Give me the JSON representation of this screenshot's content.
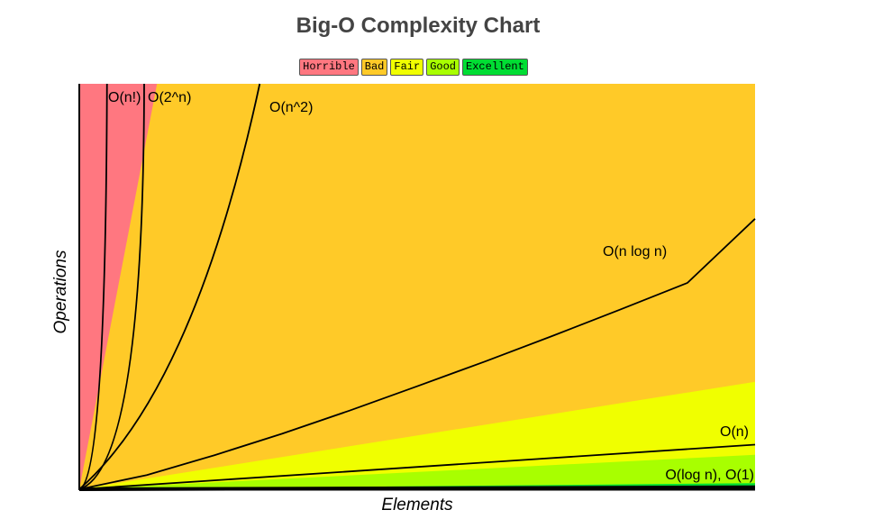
{
  "chart_data": {
    "type": "area",
    "title": "Big-O Complexity Chart",
    "xlabel": "Elements",
    "ylabel": "Operations",
    "xlim": [
      0,
      100
    ],
    "ylim": [
      0,
      100
    ],
    "grid": false,
    "legend": {
      "placement": "top-center",
      "entries": [
        {
          "name": "Horrible",
          "color": "#ff7780"
        },
        {
          "name": "Bad",
          "color": "#ffca28"
        },
        {
          "name": "Fair",
          "color": "#f0ff00"
        },
        {
          "name": "Good",
          "color": "#a8ff00"
        },
        {
          "name": "Excellent",
          "color": "#00dd33"
        }
      ]
    },
    "regions": [
      {
        "name": "Horrible",
        "color": "#ff7780",
        "top_at_x100": 100
      },
      {
        "name": "Bad",
        "color": "#ffca28",
        "top_at_x100": 100
      },
      {
        "name": "Fair",
        "color": "#f0ff00",
        "top_at_x100": 26.5
      },
      {
        "name": "Good",
        "color": "#a8ff00",
        "top_at_x100": 8.5
      },
      {
        "name": "Excellent",
        "color": "#00dd33",
        "top_at_x100": 1.5
      }
    ],
    "series": [
      {
        "name": "O(n!)",
        "x": [
          0,
          0.8,
          1.6,
          2.4,
          3.0,
          3.8
        ],
        "y": [
          0,
          0.5,
          2,
          5,
          10,
          100
        ]
      },
      {
        "name": "O(2^n)",
        "x": [
          0,
          2,
          4,
          6,
          8,
          9.5
        ],
        "y": [
          0,
          1,
          3,
          8,
          30,
          100
        ]
      },
      {
        "name": "O(n^2)",
        "x": [
          0,
          5,
          10,
          15,
          20,
          24
        ],
        "y": [
          0,
          8,
          20,
          40,
          70,
          100
        ]
      },
      {
        "name": "O(n log n)",
        "x": [
          0,
          10,
          20,
          30,
          40,
          50,
          60,
          70,
          80,
          90,
          100
        ],
        "y": [
          0,
          3.5,
          8.4,
          13.7,
          19.4,
          25.4,
          31.5,
          37.8,
          44.3,
          50.9,
          66.7
        ]
      },
      {
        "name": "O(n)",
        "x": [
          0,
          100
        ],
        "y": [
          0,
          11
        ]
      },
      {
        "name": "O(log n), O(1)",
        "x": [
          0,
          100
        ],
        "y": [
          0,
          0.5
        ]
      }
    ]
  }
}
